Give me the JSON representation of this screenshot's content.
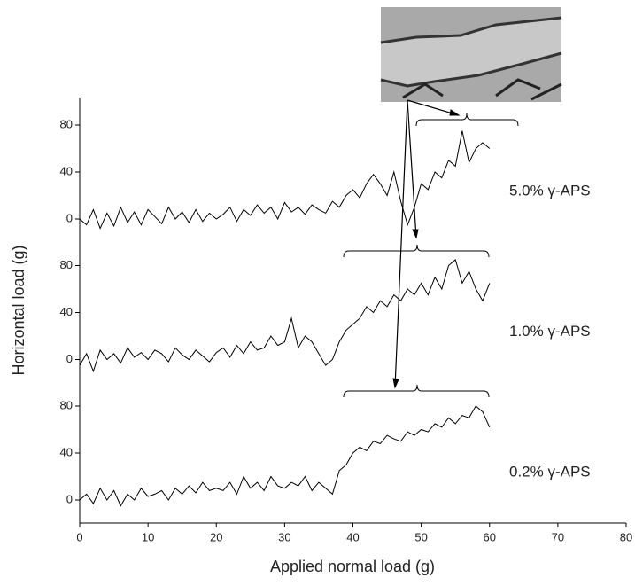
{
  "chart_data": {
    "type": "line",
    "xlabel": "Applied normal load (g)",
    "ylabel": "Horizontal load (g)",
    "xlim": [
      0,
      80
    ],
    "xticks": [
      0,
      10,
      20,
      30,
      40,
      50,
      60,
      70,
      80
    ],
    "x": [
      0,
      1,
      2,
      3,
      4,
      5,
      6,
      7,
      8,
      9,
      10,
      11,
      12,
      13,
      14,
      15,
      16,
      17,
      18,
      19,
      20,
      21,
      22,
      23,
      24,
      25,
      26,
      27,
      28,
      29,
      30,
      31,
      32,
      33,
      34,
      35,
      36,
      37,
      38,
      39,
      40,
      41,
      42,
      43,
      44,
      45,
      46,
      47,
      48,
      49,
      50,
      51,
      52,
      53,
      54,
      55,
      56,
      57,
      58,
      59,
      60
    ],
    "series": [
      {
        "name": "5.0% γ-APS",
        "color": "#000000",
        "ylim": [
          -20,
          100
        ],
        "yticks": [
          0,
          40,
          80
        ],
        "values": [
          0,
          -5,
          8,
          -8,
          5,
          -6,
          10,
          -3,
          6,
          -5,
          8,
          2,
          -4,
          10,
          0,
          6,
          -3,
          8,
          -2,
          5,
          0,
          4,
          10,
          -2,
          8,
          3,
          12,
          5,
          10,
          0,
          14,
          6,
          10,
          4,
          12,
          8,
          5,
          15,
          10,
          20,
          25,
          18,
          30,
          38,
          30,
          20,
          40,
          15,
          -5,
          10,
          30,
          25,
          40,
          35,
          50,
          45,
          75,
          48,
          60,
          65,
          60
        ]
      },
      {
        "name": "1.0% γ-APS",
        "color": "#000000",
        "ylim": [
          -20,
          100
        ],
        "yticks": [
          0,
          40,
          80
        ],
        "values": [
          -5,
          5,
          -10,
          8,
          0,
          5,
          -3,
          10,
          2,
          6,
          0,
          8,
          5,
          -2,
          10,
          4,
          0,
          8,
          3,
          -2,
          6,
          10,
          2,
          12,
          5,
          15,
          8,
          10,
          20,
          12,
          15,
          35,
          10,
          20,
          15,
          5,
          -5,
          0,
          15,
          25,
          30,
          35,
          45,
          40,
          50,
          45,
          55,
          50,
          60,
          55,
          65,
          55,
          70,
          60,
          80,
          85,
          65,
          75,
          60,
          50,
          65
        ]
      },
      {
        "name": "0.2% γ-APS",
        "color": "#000000",
        "ylim": [
          -20,
          100
        ],
        "yticks": [
          0,
          40,
          80
        ],
        "values": [
          0,
          5,
          -3,
          10,
          0,
          8,
          -5,
          5,
          0,
          10,
          3,
          5,
          8,
          0,
          10,
          5,
          12,
          6,
          15,
          8,
          10,
          8,
          15,
          5,
          20,
          10,
          15,
          8,
          20,
          12,
          10,
          15,
          12,
          20,
          8,
          15,
          10,
          5,
          25,
          30,
          40,
          45,
          42,
          50,
          48,
          55,
          52,
          50,
          58,
          55,
          60,
          58,
          65,
          62,
          70,
          65,
          72,
          70,
          80,
          75,
          62
        ]
      }
    ]
  }
}
